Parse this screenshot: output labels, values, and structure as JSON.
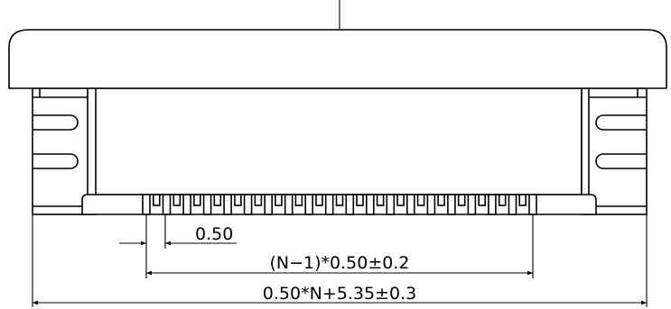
{
  "dimensions": {
    "pitch": "0.50",
    "pin_span": "(N−1)*0.50±0.2",
    "overall_width": "0.50*N+5.35±0.3"
  },
  "contacts": {
    "count": 20
  }
}
